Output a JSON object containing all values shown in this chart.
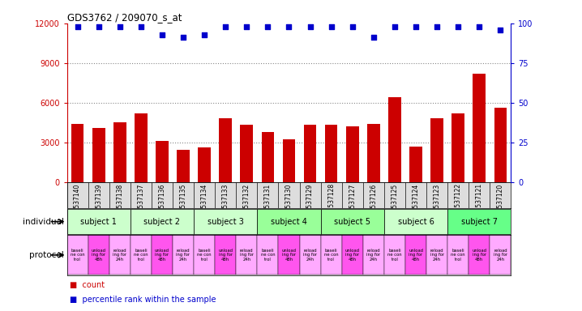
{
  "title": "GDS3762 / 209070_s_at",
  "samples": [
    "GSM537140",
    "GSM537139",
    "GSM537138",
    "GSM537137",
    "GSM537136",
    "GSM537135",
    "GSM537134",
    "GSM537133",
    "GSM537132",
    "GSM537131",
    "GSM537130",
    "GSM537129",
    "GSM537128",
    "GSM537127",
    "GSM537126",
    "GSM537125",
    "GSM537124",
    "GSM537123",
    "GSM537122",
    "GSM537121",
    "GSM537120"
  ],
  "bar_values": [
    4400,
    4100,
    4500,
    5200,
    3100,
    2400,
    2600,
    4800,
    4300,
    3800,
    3200,
    4300,
    4300,
    4200,
    4400,
    6400,
    2700,
    4800,
    5200,
    8200,
    5600
  ],
  "percentile_values": [
    98,
    98,
    98,
    98,
    93,
    91,
    93,
    98,
    98,
    98,
    98,
    98,
    98,
    98,
    91,
    98,
    98,
    98,
    98,
    98,
    96
  ],
  "bar_color": "#cc0000",
  "dot_color": "#0000cc",
  "subjects": [
    {
      "label": "subject 1",
      "start": 0,
      "end": 3,
      "color": "#ccffcc"
    },
    {
      "label": "subject 2",
      "start": 3,
      "end": 6,
      "color": "#ccffcc"
    },
    {
      "label": "subject 3",
      "start": 6,
      "end": 9,
      "color": "#ccffcc"
    },
    {
      "label": "subject 4",
      "start": 9,
      "end": 12,
      "color": "#99ff99"
    },
    {
      "label": "subject 5",
      "start": 12,
      "end": 15,
      "color": "#99ff99"
    },
    {
      "label": "subject 6",
      "start": 15,
      "end": 18,
      "color": "#ccffcc"
    },
    {
      "label": "subject 7",
      "start": 18,
      "end": 21,
      "color": "#66ff88"
    }
  ],
  "proto_labels": [
    "baseli\nne con\ntrol",
    "unload\ning for\n48h",
    "reload\ning for\n24h"
  ],
  "proto_colors": [
    "#ffaaff",
    "#ff55ee",
    "#ffaaff"
  ],
  "ylim_left": [
    0,
    12000
  ],
  "ylim_right": [
    0,
    100
  ],
  "yticks_left": [
    0,
    3000,
    6000,
    9000,
    12000
  ],
  "yticks_right": [
    0,
    25,
    50,
    75,
    100
  ],
  "ylabel_left_color": "#cc0000",
  "ylabel_right_color": "#0000cc",
  "background_color": "#ffffff",
  "grid_color": "#888888",
  "xticklabel_bg": "#dddddd"
}
